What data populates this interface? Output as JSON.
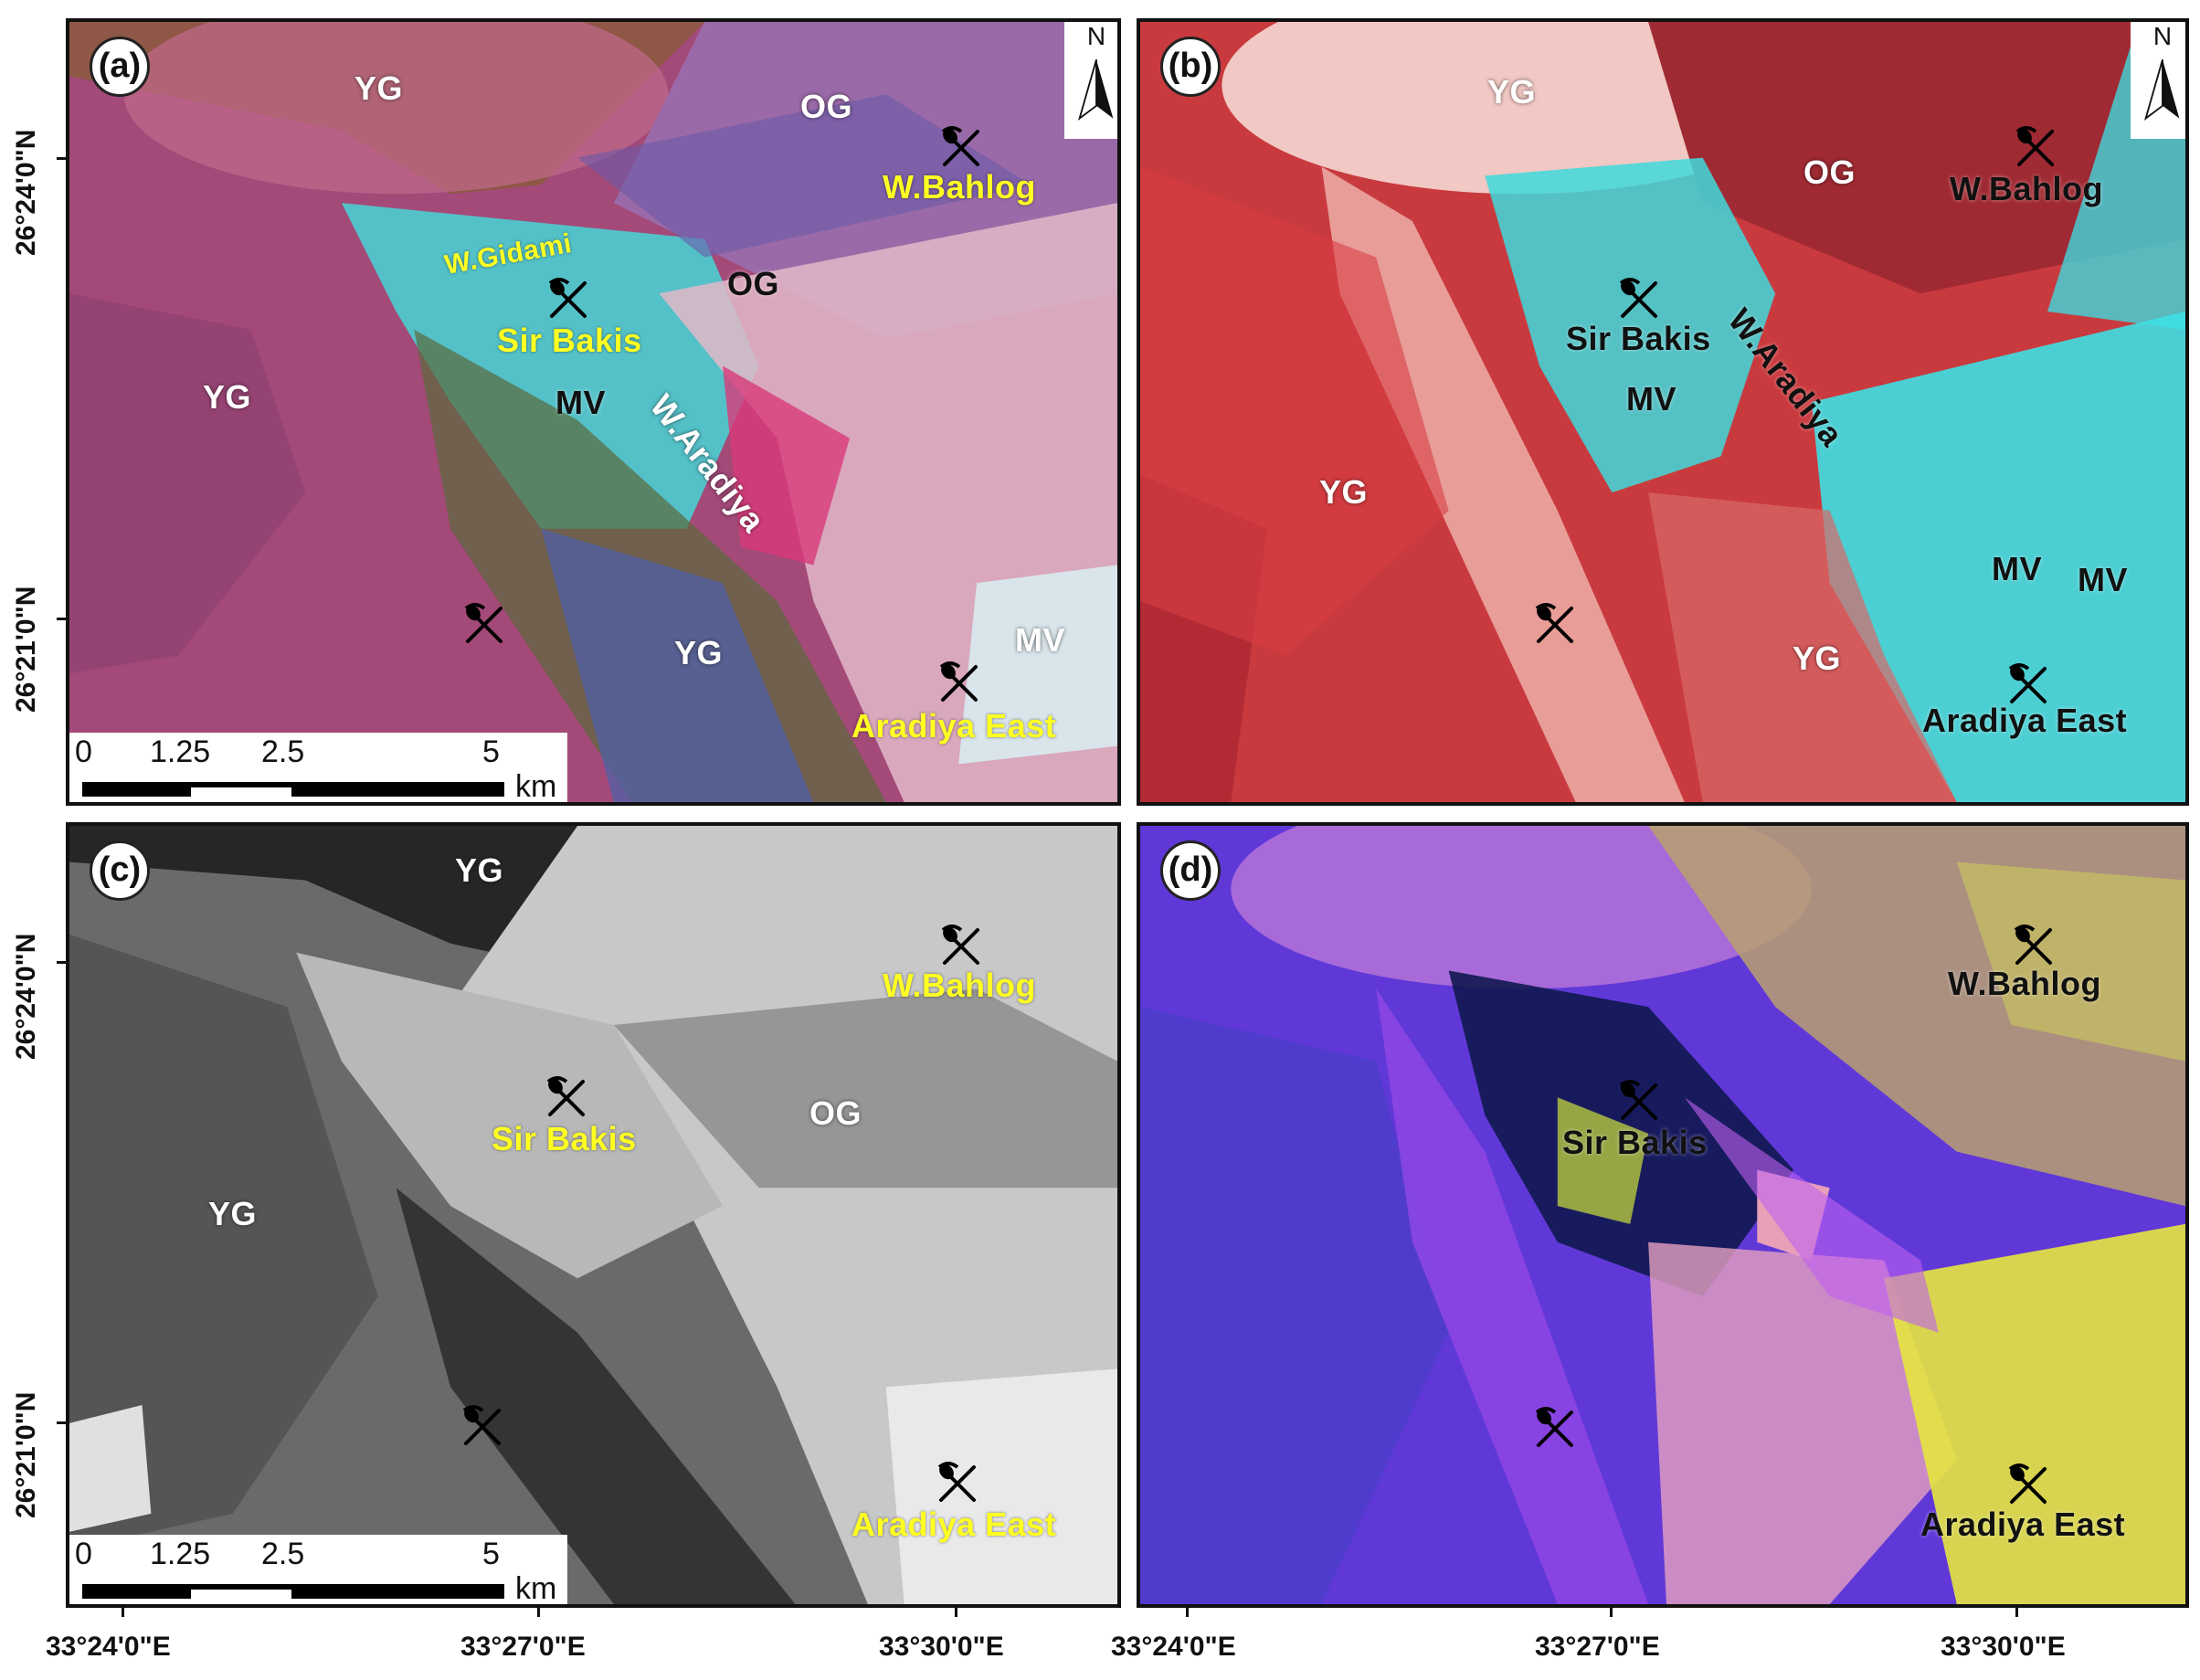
{
  "figure": {
    "lat_labels": [
      "26°24'0\"N",
      "26°21'0\"N"
    ],
    "lon_labels": [
      "33°24'0\"E",
      "33°27'0\"E",
      "33°30'0\"E"
    ]
  },
  "north_arrow": "N",
  "scale_bar": {
    "ticks": [
      "0",
      "1.25",
      "2.5",
      "5"
    ],
    "unit": "km"
  },
  "panels": [
    {
      "id": "a",
      "label": "(a)",
      "units": {
        "yg1": "YG",
        "og1": "OG",
        "og2": "OG",
        "yg2": "YG",
        "mv1": "MV",
        "yg3": "YG",
        "mv2": "MV"
      },
      "places": {
        "gidami": "W.Gidami",
        "bakis": "Sir Bakis",
        "aradiya": "W.Aradiya",
        "bahlog": "W.Bahlog",
        "east": "Aradiya East"
      }
    },
    {
      "id": "b",
      "label": "(b)",
      "units": {
        "yg1": "YG",
        "og1": "OG",
        "mv1": "MV",
        "yg2": "YG",
        "mv2": "MV",
        "mv3": "MV",
        "yg3": "YG"
      },
      "places": {
        "bakis": "Sir Bakis",
        "aradiya": "W.Aradiya",
        "bahlog": "W.Bahlog",
        "east": "Aradiya East"
      }
    },
    {
      "id": "c",
      "label": "(c)",
      "units": {
        "yg1": "YG",
        "og1": "OG",
        "yg2": "YG"
      },
      "places": {
        "bahlog": "W.Bahlog",
        "bakis": "Sir Bakis",
        "east": "Aradiya East"
      }
    },
    {
      "id": "d",
      "label": "(d)",
      "units": {},
      "places": {
        "bahlog": "W.Bahlog",
        "bakis": "Sir Bakis",
        "east": "Aradiya East"
      }
    }
  ],
  "icons": {
    "mine": "pick-and-shovel-icon",
    "north": "north-arrow-icon"
  },
  "colors": {
    "panel_a_base": "#b04d7e",
    "panel_b_base": "#cc3a3f",
    "panel_c_base": "#6b6b6b",
    "panel_d_base": "#6a38e0",
    "mv_cyan": "#3fe3e3",
    "place_yellow": "#ffff22"
  }
}
